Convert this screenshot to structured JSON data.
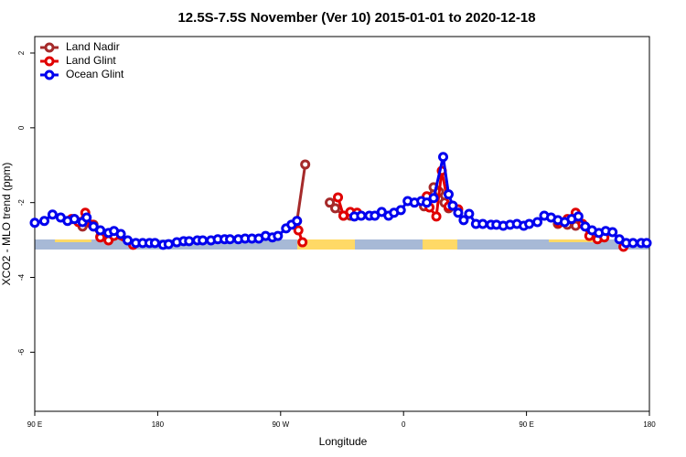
{
  "chart_data": {
    "type": "line",
    "title": "12.5S-7.5S November (Ver 10)   2015-01-01 to 2020-12-18",
    "x_label": "Longitude",
    "y_label": "XCO2 - MLO trend (ppm)",
    "xlim": [
      90,
      540
    ],
    "ylim": [
      -7.58,
      2.44
    ],
    "xticks": [
      {
        "value": 90,
        "label": "90 E"
      },
      180,
      {
        "value": 270,
        "label": "90 W"
      },
      {
        "value": 360,
        "label": "0"
      },
      {
        "value": 450,
        "label": "90 E"
      },
      {
        "value": 540,
        "label": "180"
      }
    ],
    "yticks": [
      -6,
      -4,
      -2,
      0,
      2
    ],
    "legend": "top-left",
    "series": [
      {
        "name": "Land Nadir",
        "color": "#a52a2a",
        "x": [
          119,
          125,
          133,
          138,
          144,
          null,
          282,
          288,
          null,
          306,
          310,
          316,
          321,
          null,
          375,
          382,
          386,
          390,
          393,
          null,
          473,
          480,
          486
        ],
        "values": [
          -2.44,
          -2.64,
          -2.59,
          -2.91,
          -2.98,
          null,
          -2.49,
          -0.98,
          null,
          -2.0,
          -2.15,
          -2.35,
          -2.35,
          null,
          -2.1,
          -1.59,
          -1.71,
          -2.0,
          -2.15,
          null,
          -2.57,
          -2.59,
          -2.62
        ]
      },
      {
        "name": "Land Glint",
        "color": "#e00000",
        "x": [
          117,
          122,
          127,
          132,
          138,
          144,
          148,
          162,
          null,
          283,
          286,
          null,
          312,
          316,
          321,
          326,
          null,
          377,
          379,
          384,
          388,
          393,
          400,
          null,
          474,
          480,
          486,
          491,
          496,
          502,
          507,
          null,
          521
        ],
        "values": [
          -2.44,
          -2.52,
          -2.27,
          -2.59,
          -2.93,
          -3.01,
          -2.89,
          -3.13,
          null,
          -2.74,
          -3.06,
          null,
          -1.86,
          -2.35,
          -2.25,
          -2.27,
          null,
          -1.83,
          -2.13,
          -2.37,
          -1.15,
          -2.1,
          -2.18,
          null,
          -2.54,
          -2.44,
          -2.27,
          -2.57,
          -2.89,
          -2.98,
          -2.93,
          null,
          -3.18
        ]
      },
      {
        "name": "Ocean Glint",
        "color": "#0000ee",
        "x": [
          90,
          97,
          103,
          109,
          114,
          119,
          125,
          128,
          133,
          138,
          144,
          148,
          153,
          158,
          164,
          169,
          174,
          178,
          184,
          188,
          194,
          199,
          203,
          209,
          213,
          219,
          224,
          229,
          233,
          239,
          244,
          249,
          254,
          259,
          264,
          268,
          274,
          278,
          282,
          null,
          324,
          329,
          335,
          339,
          344,
          349,
          353,
          358,
          363,
          368,
          373,
          377,
          382,
          389,
          393,
          396,
          400,
          404,
          408,
          413,
          418,
          424,
          428,
          433,
          438,
          443,
          448,
          452,
          458,
          463,
          468,
          473,
          478,
          483,
          488,
          493,
          498,
          503,
          508,
          513,
          518,
          523,
          528,
          534,
          538
        ],
        "values": [
          -2.54,
          -2.49,
          -2.32,
          -2.4,
          -2.49,
          -2.44,
          -2.52,
          -2.4,
          -2.64,
          -2.74,
          -2.81,
          -2.76,
          -2.84,
          -3.01,
          -3.08,
          -3.08,
          -3.08,
          -3.08,
          -3.13,
          -3.11,
          -3.06,
          -3.03,
          -3.03,
          -3.01,
          -3.01,
          -3.01,
          -2.98,
          -2.98,
          -2.98,
          -2.98,
          -2.96,
          -2.96,
          -2.96,
          -2.89,
          -2.93,
          -2.89,
          -2.69,
          -2.59,
          -2.49,
          null,
          -2.37,
          -2.35,
          -2.35,
          -2.35,
          -2.25,
          -2.35,
          -2.27,
          -2.2,
          -1.96,
          -2.0,
          -1.96,
          -2.0,
          -1.88,
          -0.78,
          -1.78,
          -2.08,
          -2.27,
          -2.47,
          -2.3,
          -2.57,
          -2.57,
          -2.59,
          -2.59,
          -2.62,
          -2.59,
          -2.57,
          -2.62,
          -2.57,
          -2.52,
          -2.35,
          -2.4,
          -2.47,
          -2.52,
          -2.44,
          -2.37,
          -2.64,
          -2.74,
          -2.81,
          -2.76,
          -2.79,
          -2.98,
          -3.08,
          -3.08,
          -3.08,
          -3.08
        ]
      }
    ]
  }
}
